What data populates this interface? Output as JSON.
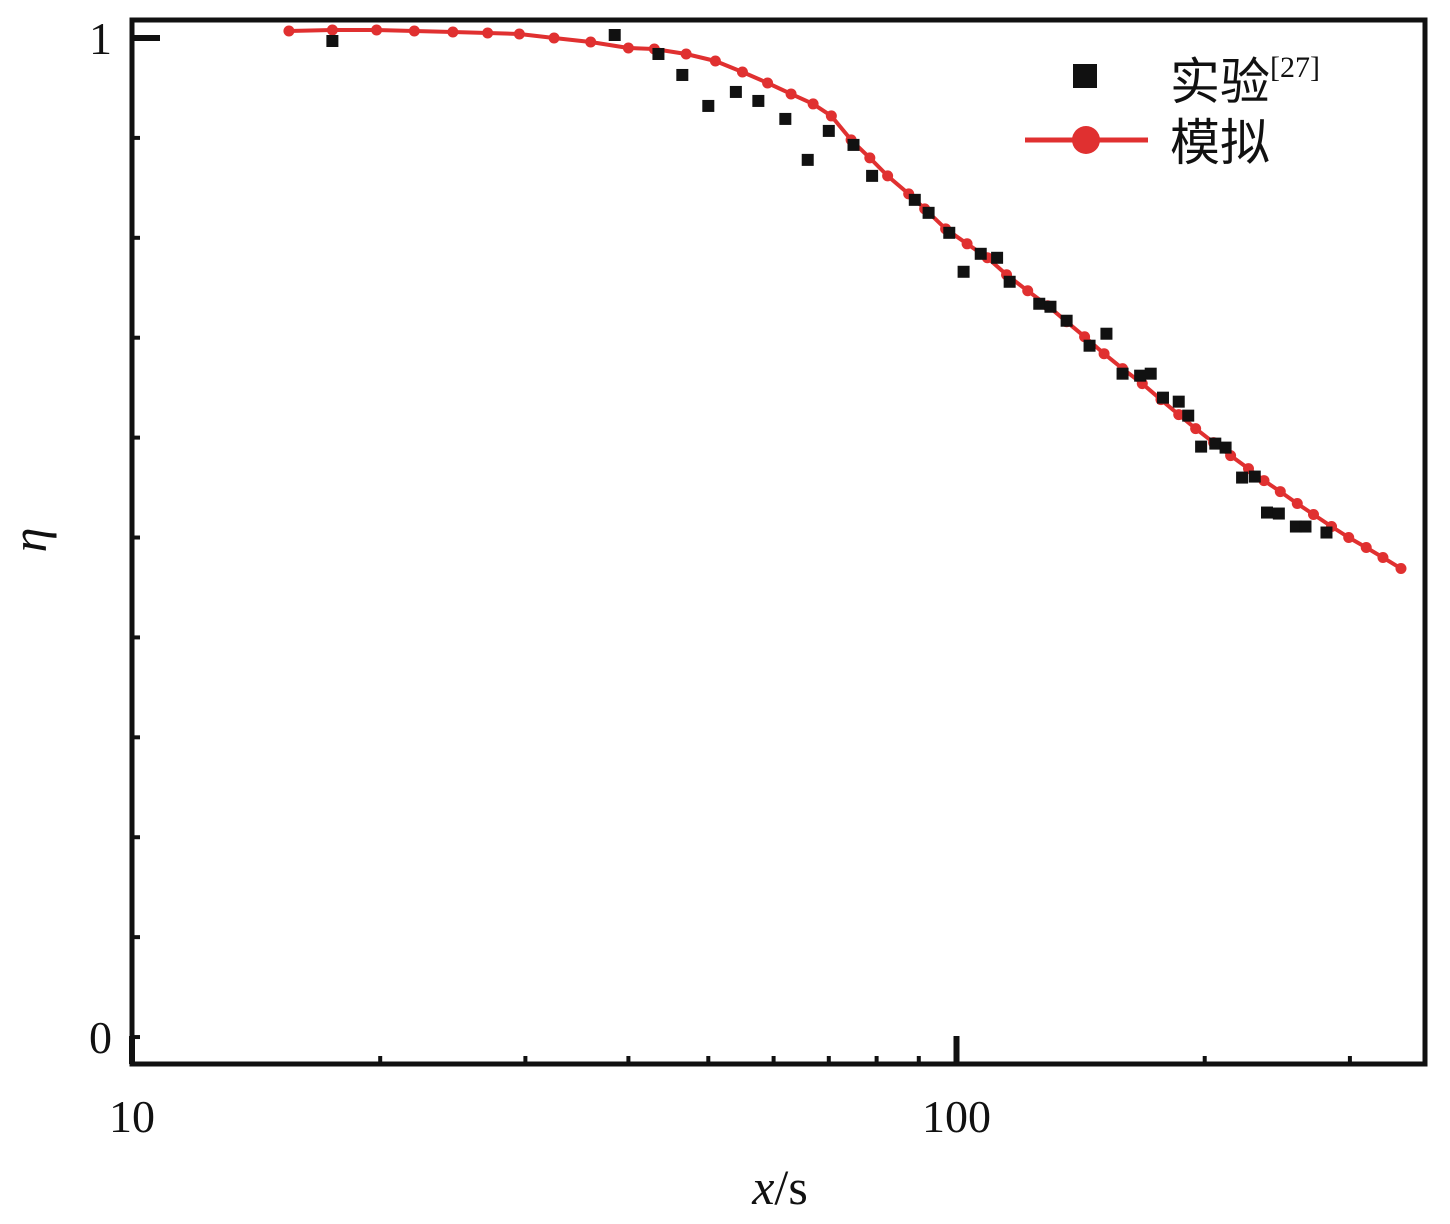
{
  "chart_data": {
    "type": "scatter",
    "xscale": "log",
    "xlim": [
      10,
      370
    ],
    "ylim": [
      -0.045,
      1.0
    ],
    "grid": false,
    "legend": "top-right",
    "xlabel": {
      "italic": "x",
      "rest": "/s"
    },
    "ylabel": "η",
    "x_tick_labels": [
      {
        "value": 10,
        "label": "10"
      },
      {
        "value": 100,
        "label": "100"
      }
    ],
    "y_tick_labels": [
      {
        "value": 1,
        "label": "1"
      },
      {
        "value": 0,
        "label": "0"
      }
    ],
    "series": [
      {
        "name": "实验",
        "name_sup": "[27]",
        "color": "#111111",
        "marker": "square",
        "points": [
          [
            17.5,
            0.997
          ],
          [
            38.5,
            1.003
          ],
          [
            43.5,
            0.984
          ],
          [
            46.5,
            0.963
          ],
          [
            50,
            0.932
          ],
          [
            54,
            0.946
          ],
          [
            57.5,
            0.937
          ],
          [
            62,
            0.919
          ],
          [
            66,
            0.878
          ],
          [
            70,
            0.907
          ],
          [
            75,
            0.893
          ],
          [
            79,
            0.862
          ],
          [
            89,
            0.838
          ],
          [
            92.5,
            0.825
          ],
          [
            98,
            0.805
          ],
          [
            102,
            0.766
          ],
          [
            107,
            0.784
          ],
          [
            112,
            0.78
          ],
          [
            116,
            0.756
          ],
          [
            126,
            0.734
          ],
          [
            130,
            0.731
          ],
          [
            136,
            0.717
          ],
          [
            145,
            0.692
          ],
          [
            152,
            0.704
          ],
          [
            159,
            0.664
          ],
          [
            167,
            0.662
          ],
          [
            172,
            0.664
          ],
          [
            178,
            0.64
          ],
          [
            186,
            0.636
          ],
          [
            191,
            0.622
          ],
          [
            198,
            0.591
          ],
          [
            206,
            0.594
          ],
          [
            212,
            0.59
          ],
          [
            222,
            0.56
          ],
          [
            230,
            0.561
          ],
          [
            238,
            0.525
          ],
          [
            246,
            0.524
          ],
          [
            258,
            0.511
          ],
          [
            265,
            0.511
          ],
          [
            281,
            0.505
          ]
        ]
      },
      {
        "name": "模拟",
        "color": "#e03030",
        "marker": "circle",
        "points": [
          [
            15.5,
            1.007
          ],
          [
            17.5,
            1.008
          ],
          [
            19.8,
            1.008
          ],
          [
            22,
            1.007
          ],
          [
            24.5,
            1.006
          ],
          [
            27,
            1.005
          ],
          [
            29.5,
            1.004
          ],
          [
            32.5,
            1.0
          ],
          [
            36,
            0.996
          ],
          [
            40,
            0.99
          ],
          [
            43,
            0.989
          ],
          [
            47,
            0.984
          ],
          [
            51,
            0.977
          ],
          [
            55,
            0.966
          ],
          [
            59,
            0.955
          ],
          [
            63,
            0.944
          ],
          [
            67,
            0.934
          ],
          [
            70.5,
            0.922
          ],
          [
            74.5,
            0.898
          ],
          [
            78.5,
            0.88
          ],
          [
            82.5,
            0.862
          ],
          [
            87.5,
            0.844
          ],
          [
            91.5,
            0.829
          ],
          [
            97,
            0.809
          ],
          [
            103,
            0.794
          ],
          [
            109,
            0.78
          ],
          [
            115,
            0.763
          ],
          [
            122,
            0.747
          ],
          [
            129,
            0.732
          ],
          [
            136,
            0.716
          ],
          [
            143,
            0.701
          ],
          [
            151,
            0.684
          ],
          [
            159,
            0.669
          ],
          [
            168,
            0.654
          ],
          [
            177,
            0.638
          ],
          [
            186,
            0.623
          ],
          [
            195,
            0.609
          ],
          [
            205,
            0.595
          ],
          [
            215,
            0.582
          ],
          [
            226,
            0.569
          ],
          [
            236,
            0.557
          ],
          [
            247,
            0.546
          ],
          [
            259,
            0.534
          ],
          [
            271,
            0.523
          ],
          [
            285,
            0.511
          ],
          [
            299,
            0.5
          ],
          [
            314,
            0.49
          ],
          [
            329,
            0.48
          ],
          [
            346,
            0.469
          ]
        ]
      }
    ]
  }
}
